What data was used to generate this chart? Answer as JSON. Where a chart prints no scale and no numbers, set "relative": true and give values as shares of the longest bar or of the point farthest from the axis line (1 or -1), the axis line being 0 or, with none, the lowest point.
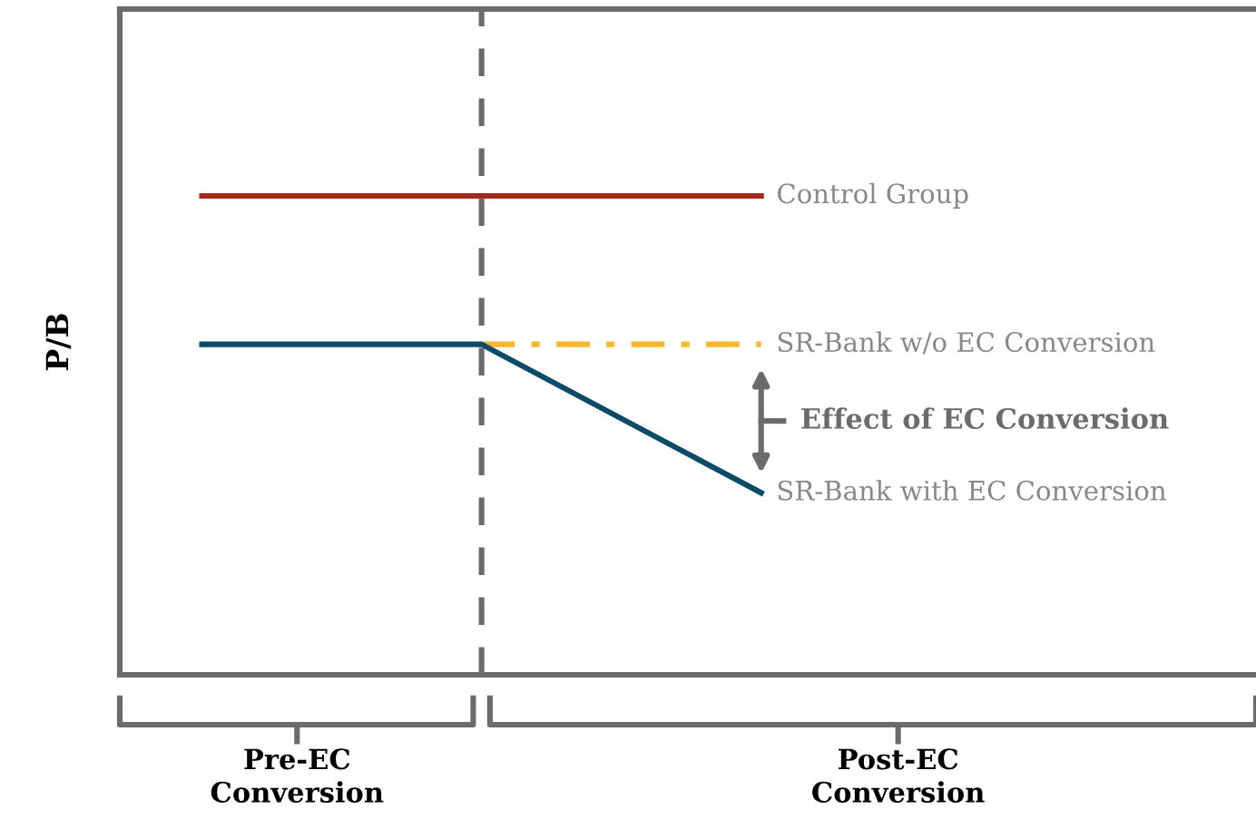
{
  "chart_data": {
    "type": "line",
    "relative": true,
    "ylabel": "P/B",
    "categories": [
      null,
      null,
      null
    ],
    "series": [
      {
        "name": "Control Group",
        "color": "#a32a1c",
        "values": [
          1,
          1,
          1
        ]
      },
      {
        "name": "SR-Bank w/o EC Conversion",
        "color": "#fbb72c",
        "values": [
          null,
          0.69,
          0.69
        ],
        "line_style": "dashdot"
      },
      {
        "name": "SR-Bank with EC Conversion",
        "color": "#0b4a68",
        "values": [
          0.69,
          0.69,
          0.38
        ]
      }
    ],
    "annotations": [
      "Effect of EC Conversion",
      "Pre-EC\nConversion",
      "Post-EC\nConversion"
    ],
    "legend": false,
    "grid": false,
    "marker": "none"
  }
}
